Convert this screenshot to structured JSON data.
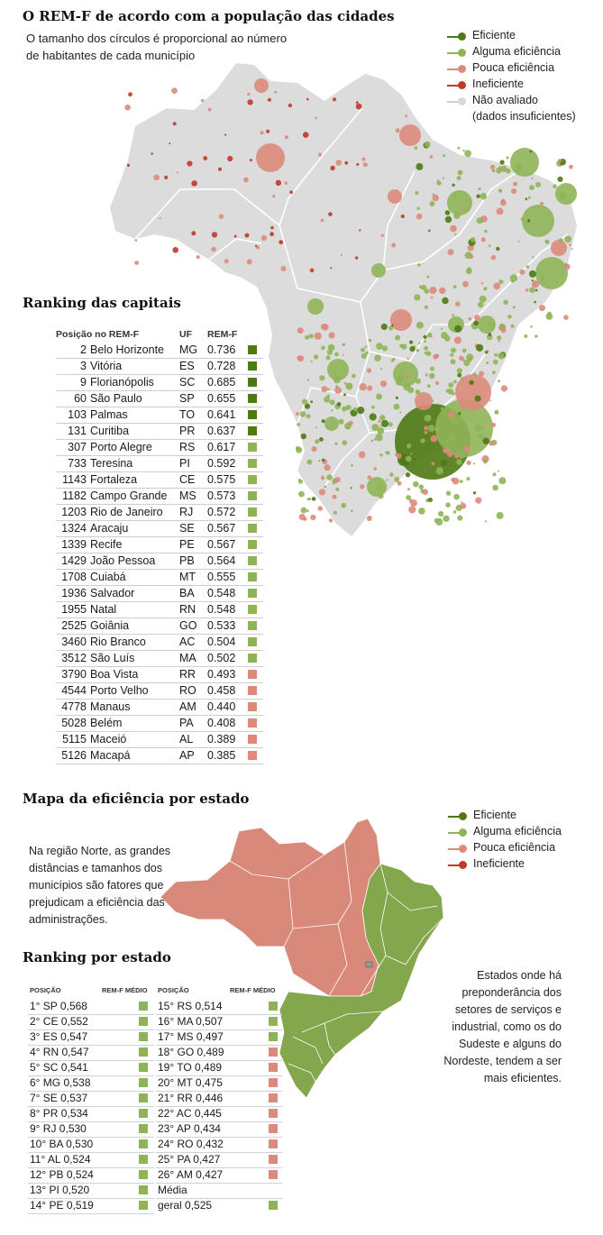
{
  "colors": {
    "eficiente": "#4e7a13",
    "alguma": "#8fb457",
    "pouca": "#dc8a7a",
    "ineficiente": "#c0392b",
    "nao_avaliado": "#d8d8d8",
    "map_gray": "#dcdcdc",
    "map_red": "#d9897a",
    "map_green": "#84a64c"
  },
  "section1": {
    "title": "O REM-F de acordo com a população das cidades",
    "subtitle_line1": "O tamanho dos círculos é proporcional ao número",
    "subtitle_line2": "de habitantes de cada município"
  },
  "legend1": {
    "eficiente": "Eficiente",
    "alguma": "Alguma eficiência",
    "pouca": "Pouca eficiência",
    "ineficiente": "Ineficiente",
    "nao_avaliado": "Não avaliado",
    "nao_avaliado_2": "(dados insuficientes)"
  },
  "capitals": {
    "title": "Ranking das capitais",
    "col_pos": "Posição no REM-F",
    "col_uf": "UF",
    "col_val": "REM-F"
  },
  "section2": {
    "title": "Mapa da eficiência por estado",
    "note_left": [
      "Na região Norte, as grandes",
      "distâncias e tamanhos dos",
      "municípios são fatores que",
      "prejudicam a eficiência das",
      "administrações."
    ],
    "note_right": [
      "Estados onde há",
      "preponderância dos",
      "setores de serviços e",
      "industrial, como os do",
      "Sudeste e alguns do",
      "Nordeste, tendem a ser",
      "mais eficientes."
    ]
  },
  "legend2": {
    "eficiente": "Eficiente",
    "alguma": "Alguma eficiência",
    "pouca": "Pouca eficiência",
    "ineficiente": "Ineficiente"
  },
  "states": {
    "title": "Ranking por estado",
    "col_pos": "POSIÇÃO",
    "col_val": "REM-F MÉDIO",
    "media_label": "Média",
    "geral_label": "geral 0,525",
    "geral_value": 0.525
  },
  "chart_data": [
    {
      "type": "table",
      "title": "Ranking das capitais",
      "columns": [
        "Posição no REM-F",
        "",
        "UF",
        "REM-F"
      ],
      "rows": [
        {
          "pos": 2,
          "city": "Belo Horizonte",
          "uf": "MG",
          "value": 0.736,
          "category": "eficiente"
        },
        {
          "pos": 3,
          "city": "Vitória",
          "uf": "ES",
          "value": 0.728,
          "category": "eficiente"
        },
        {
          "pos": 9,
          "city": "Florianópolis",
          "uf": "SC",
          "value": 0.685,
          "category": "eficiente"
        },
        {
          "pos": 60,
          "city": "São Paulo",
          "uf": "SP",
          "value": 0.655,
          "category": "eficiente"
        },
        {
          "pos": 103,
          "city": "Palmas",
          "uf": "TO",
          "value": 0.641,
          "category": "eficiente"
        },
        {
          "pos": 131,
          "city": "Curitiba",
          "uf": "PR",
          "value": 0.637,
          "category": "eficiente"
        },
        {
          "pos": 307,
          "city": "Porto Alegre",
          "uf": "RS",
          "value": 0.617,
          "category": "alguma"
        },
        {
          "pos": 733,
          "city": "Teresina",
          "uf": "PI",
          "value": 0.592,
          "category": "alguma"
        },
        {
          "pos": 1143,
          "city": "Fortaleza",
          "uf": "CE",
          "value": 0.575,
          "category": "alguma"
        },
        {
          "pos": 1182,
          "city": "Campo Grande",
          "uf": "MS",
          "value": 0.573,
          "category": "alguma"
        },
        {
          "pos": 1203,
          "city": "Rio de Janeiro",
          "uf": "RJ",
          "value": 0.572,
          "category": "alguma"
        },
        {
          "pos": 1324,
          "city": "Aracaju",
          "uf": "SE",
          "value": 0.567,
          "category": "alguma"
        },
        {
          "pos": 1339,
          "city": "Recife",
          "uf": "PE",
          "value": 0.567,
          "category": "alguma"
        },
        {
          "pos": 1429,
          "city": "João Pessoa",
          "uf": "PB",
          "value": 0.564,
          "category": "alguma"
        },
        {
          "pos": 1708,
          "city": "Cuiabá",
          "uf": "MT",
          "value": 0.555,
          "category": "alguma"
        },
        {
          "pos": 1936,
          "city": "Salvador",
          "uf": "BA",
          "value": 0.548,
          "category": "alguma"
        },
        {
          "pos": 1955,
          "city": "Natal",
          "uf": "RN",
          "value": 0.548,
          "category": "alguma"
        },
        {
          "pos": 2525,
          "city": "Goiânia",
          "uf": "GO",
          "value": 0.533,
          "category": "alguma"
        },
        {
          "pos": 3460,
          "city": "Rio Branco",
          "uf": "AC",
          "value": 0.504,
          "category": "alguma"
        },
        {
          "pos": 3512,
          "city": "São Luís",
          "uf": "MA",
          "value": 0.502,
          "category": "alguma"
        },
        {
          "pos": 3790,
          "city": "Boa Vista",
          "uf": "RR",
          "value": 0.493,
          "category": "pouca"
        },
        {
          "pos": 4544,
          "city": "Porto Velho",
          "uf": "RO",
          "value": 0.458,
          "category": "pouca"
        },
        {
          "pos": 4778,
          "city": "Manaus",
          "uf": "AM",
          "value": 0.44,
          "category": "pouca"
        },
        {
          "pos": 5028,
          "city": "Belém",
          "uf": "PA",
          "value": 0.408,
          "category": "pouca"
        },
        {
          "pos": 5115,
          "city": "Maceió",
          "uf": "AL",
          "value": 0.389,
          "category": "pouca"
        },
        {
          "pos": 5126,
          "city": "Macapá",
          "uf": "AP",
          "value": 0.385,
          "category": "pouca"
        }
      ]
    },
    {
      "type": "table",
      "title": "Ranking por estado",
      "columns": [
        "POSIÇÃO",
        "REM-F MÉDIO"
      ],
      "rows": [
        {
          "pos": 1,
          "uf": "SP",
          "value": 0.568,
          "label": "1° SP 0,568",
          "category": "alguma"
        },
        {
          "pos": 2,
          "uf": "CE",
          "value": 0.552,
          "label": "2° CE 0,552",
          "category": "alguma"
        },
        {
          "pos": 3,
          "uf": "ES",
          "value": 0.547,
          "label": "3° ES 0,547",
          "category": "alguma"
        },
        {
          "pos": 4,
          "uf": "RN",
          "value": 0.547,
          "label": "4° RN 0,547",
          "category": "alguma"
        },
        {
          "pos": 5,
          "uf": "SC",
          "value": 0.541,
          "label": "5° SC 0,541",
          "category": "alguma"
        },
        {
          "pos": 6,
          "uf": "MG",
          "value": 0.538,
          "label": "6° MG 0,538",
          "category": "alguma"
        },
        {
          "pos": 7,
          "uf": "SE",
          "value": 0.537,
          "label": "7° SE 0,537",
          "category": "alguma"
        },
        {
          "pos": 8,
          "uf": "PR",
          "value": 0.534,
          "label": "8° PR 0,534",
          "category": "alguma"
        },
        {
          "pos": 9,
          "uf": "RJ",
          "value": 0.53,
          "label": "9° RJ 0,530",
          "category": "alguma"
        },
        {
          "pos": 10,
          "uf": "BA",
          "value": 0.53,
          "label": "10° BA 0,530",
          "category": "alguma"
        },
        {
          "pos": 11,
          "uf": "AL",
          "value": 0.524,
          "label": "11° AL 0,524",
          "category": "alguma"
        },
        {
          "pos": 12,
          "uf": "PB",
          "value": 0.524,
          "label": "12° PB 0,524",
          "category": "alguma"
        },
        {
          "pos": 13,
          "uf": "PI",
          "value": 0.52,
          "label": "13° PI 0,520",
          "category": "alguma"
        },
        {
          "pos": 14,
          "uf": "PE",
          "value": 0.519,
          "label": "14° PE 0,519",
          "category": "alguma"
        },
        {
          "pos": 15,
          "uf": "RS",
          "value": 0.514,
          "label": "15° RS 0,514",
          "category": "alguma"
        },
        {
          "pos": 16,
          "uf": "MA",
          "value": 0.507,
          "label": "16° MA 0,507",
          "category": "alguma"
        },
        {
          "pos": 17,
          "uf": "MS",
          "value": 0.497,
          "label": "17° MS 0,497",
          "category": "alguma"
        },
        {
          "pos": 18,
          "uf": "GO",
          "value": 0.489,
          "label": "18° GO 0,489",
          "category": "pouca"
        },
        {
          "pos": 19,
          "uf": "TO",
          "value": 0.489,
          "label": "19° TO 0,489",
          "category": "pouca"
        },
        {
          "pos": 20,
          "uf": "MT",
          "value": 0.475,
          "label": "20° MT 0,475",
          "category": "pouca"
        },
        {
          "pos": 21,
          "uf": "RR",
          "value": 0.446,
          "label": "21° RR 0,446",
          "category": "pouca"
        },
        {
          "pos": 22,
          "uf": "AC",
          "value": 0.445,
          "label": "22° AC 0,445",
          "category": "pouca"
        },
        {
          "pos": 23,
          "uf": "AP",
          "value": 0.434,
          "label": "23° AP 0,434",
          "category": "pouca"
        },
        {
          "pos": 24,
          "uf": "RO",
          "value": 0.432,
          "label": "24° RO 0,432",
          "category": "pouca"
        },
        {
          "pos": 25,
          "uf": "PA",
          "value": 0.427,
          "label": "25° PA 0,427",
          "category": "pouca"
        },
        {
          "pos": 26,
          "uf": "AM",
          "value": 0.427,
          "label": "26° AM 0,427",
          "category": "pouca"
        }
      ]
    }
  ]
}
